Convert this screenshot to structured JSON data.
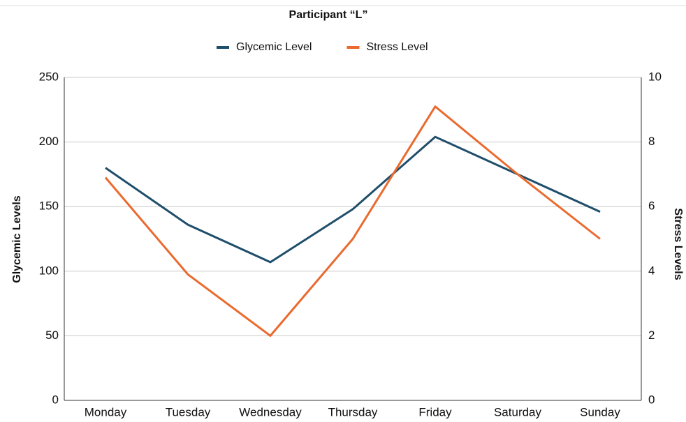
{
  "chart_data": {
    "type": "line",
    "title": "Participant “L”",
    "categories": [
      "Monday",
      "Tuesday",
      "Wednesday",
      "Thursday",
      "Friday",
      "Saturday",
      "Sunday"
    ],
    "series": [
      {
        "name": "Glycemic Level",
        "color": "#1f4e6b",
        "values": [
          180,
          136,
          107,
          148,
          204,
          175,
          146
        ]
      },
      {
        "name": "Stress Level",
        "color": "#ea6a2e",
        "axis": "y2",
        "values": [
          6.9,
          3.9,
          2,
          5,
          9.1,
          7,
          5
        ]
      }
    ],
    "ylabel": "Glycemic Levels",
    "y2label": "Stress Levels",
    "ylim": [
      0,
      250
    ],
    "yticks": [
      0,
      50,
      100,
      150,
      200,
      250
    ],
    "y2lim": [
      0,
      10
    ],
    "y2ticks": [
      0,
      2,
      4,
      6,
      8,
      10
    ],
    "grid": true,
    "legend": "top"
  }
}
